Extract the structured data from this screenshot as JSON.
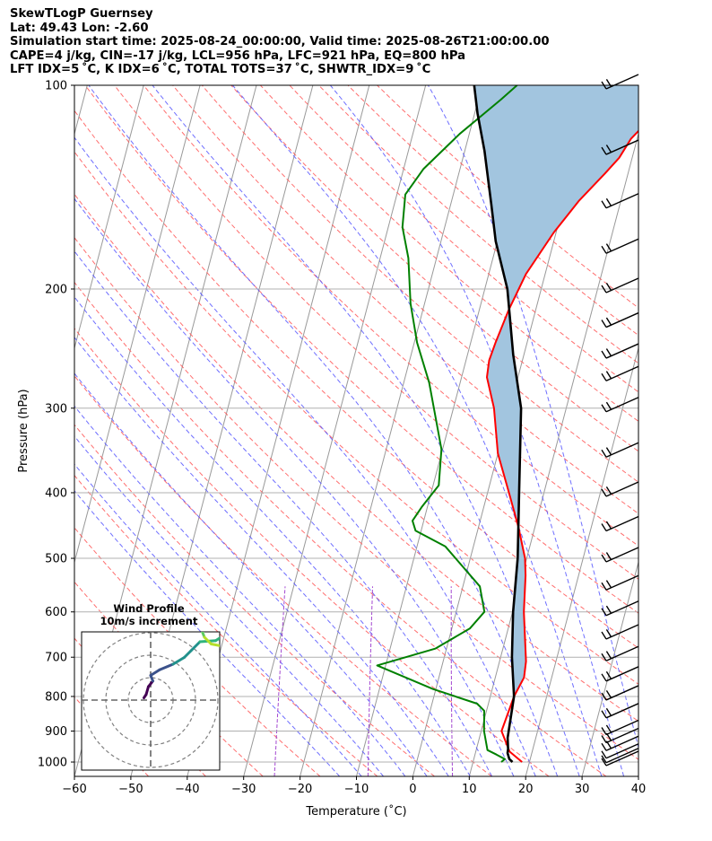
{
  "header": {
    "line1": "SkewTLogP Guernsey",
    "line2": "Lat: 49.43   Lon: -2.60",
    "line3": "Simulation start time: 2025-08-24_00:00:00, Valid time: 2025-08-26T21:00:00.00",
    "line4": "CAPE=4 j/kg, CIN=-17 j/kg, LCL=956 hPa, LFC=921 hPa, EQ=800 hPa",
    "line5": "LFT IDX=5 ˚C, K IDX=6 ˚C, TOTAL TOTS=37 ˚C, SHWTR_IDX=9 ˚C"
  },
  "colors": {
    "temperature": "#ff0000",
    "dewpoint": "#008000",
    "parcel": "#000000",
    "cape_fill": "#a2c5df",
    "dry_adiabat": "#ff5555",
    "moist_adiabat": "#5555ff",
    "mixing_ratio": "#9933cc",
    "isotherm": "#999999"
  },
  "chart_data": {
    "type": "skewt-logp",
    "xlabel": "Temperature (˚C)",
    "ylabel": "Pressure (hPa)",
    "xlim": [
      -60,
      40
    ],
    "ylim": [
      1050,
      100
    ],
    "x_ticks": [
      -60,
      -50,
      -40,
      -30,
      -20,
      -10,
      0,
      10,
      20,
      30,
      40
    ],
    "x_tick_labels": [
      "−60",
      "−50",
      "−40",
      "−30",
      "−20",
      "−10",
      "0",
      "10",
      "20",
      "30",
      "40"
    ],
    "p_ticks": [
      1000,
      900,
      800,
      700,
      600,
      500,
      400,
      300,
      200,
      100
    ],
    "p_tick_labels": [
      "1000",
      "900",
      "800",
      "700",
      "600",
      "500",
      "400",
      "300",
      "200",
      "100"
    ],
    "skew_deg_per_decade": 31.6,
    "series": [
      {
        "name": "Temperature",
        "points": [
          [
            18.7,
            1000
          ],
          [
            16.0,
            965
          ],
          [
            13.6,
            900
          ],
          [
            14.2,
            800
          ],
          [
            15.1,
            750
          ],
          [
            14.7,
            710
          ],
          [
            12.0,
            600
          ],
          [
            10.6,
            530
          ],
          [
            9.7,
            500
          ],
          [
            7.1,
            450
          ],
          [
            3.8,
            400
          ],
          [
            0.0,
            350
          ],
          [
            -2.8,
            300
          ],
          [
            -5.5,
            270
          ],
          [
            -5.9,
            255
          ],
          [
            -5.6,
            240
          ],
          [
            -4.8,
            215
          ],
          [
            -3.4,
            190
          ],
          [
            -0.4,
            165
          ],
          [
            2.6,
            148
          ],
          [
            5.9,
            135
          ],
          [
            7.7,
            128
          ],
          [
            8.9,
            120
          ],
          [
            11.4,
            112
          ],
          [
            13.3,
            105
          ],
          [
            14.7,
            100
          ]
        ]
      },
      {
        "name": "Dewpoint",
        "points": [
          [
            15.0,
            1000
          ],
          [
            15.5,
            990
          ],
          [
            13.8,
            975
          ],
          [
            12.0,
            960
          ],
          [
            10.5,
            900
          ],
          [
            9.6,
            840
          ],
          [
            8.0,
            820
          ],
          [
            -0.5,
            780
          ],
          [
            -11.5,
            720
          ],
          [
            -2.0,
            680
          ],
          [
            3.2,
            635
          ],
          [
            5.0,
            600
          ],
          [
            3.0,
            550
          ],
          [
            -5.0,
            480
          ],
          [
            -11.0,
            455
          ],
          [
            -12.0,
            440
          ],
          [
            -11.0,
            420
          ],
          [
            -9.0,
            390
          ],
          [
            -10.2,
            345
          ],
          [
            -15.5,
            275
          ],
          [
            -19.5,
            240
          ],
          [
            -22.5,
            210
          ],
          [
            -25.0,
            180
          ],
          [
            -27.5,
            162
          ],
          [
            -28.5,
            145
          ],
          [
            -26.5,
            133
          ],
          [
            -21.7,
            118
          ],
          [
            -16.0,
            105
          ],
          [
            -13.8,
            100
          ]
        ]
      },
      {
        "name": "Parcel",
        "points": [
          [
            17.0,
            1000
          ],
          [
            16.3,
            990
          ],
          [
            15.7,
            970
          ],
          [
            15.6,
            956
          ],
          [
            15.0,
            921
          ],
          [
            14.2,
            800
          ],
          [
            12.0,
            700
          ],
          [
            10.1,
            600
          ],
          [
            8.4,
            500
          ],
          [
            5.6,
            400
          ],
          [
            2.0,
            300
          ],
          [
            -1.9,
            250
          ],
          [
            -6.0,
            200
          ],
          [
            -10.3,
            170
          ],
          [
            -12.8,
            150
          ],
          [
            -16.5,
            125
          ],
          [
            -19.5,
            110
          ],
          [
            -21.4,
            100
          ]
        ]
      }
    ],
    "wind_barbs": {
      "levels": [
        1000,
        990,
        975,
        950,
        925,
        900,
        850,
        800,
        750,
        700,
        650,
        600,
        550,
        500,
        450,
        400,
        350,
        300,
        270,
        250,
        225,
        200,
        175,
        150,
        125,
        100
      ],
      "flags": [
        1,
        1,
        1,
        2,
        2,
        2,
        2,
        2,
        2,
        2,
        2,
        2,
        2,
        2,
        2,
        2,
        2,
        2,
        2,
        2,
        2,
        2,
        2,
        2,
        2,
        2
      ]
    },
    "inset": {
      "title": "Wind Profile",
      "subtitle": "10m/s increment",
      "rings": [
        1,
        2,
        3
      ],
      "hodograph": [
        [
          -0.3,
          0.1
        ],
        [
          -0.2,
          0.25
        ],
        [
          -0.1,
          0.6
        ],
        [
          0.1,
          0.85
        ],
        [
          0.0,
          1.1
        ],
        [
          0.4,
          1.35
        ],
        [
          1.0,
          1.6
        ],
        [
          1.5,
          1.9
        ],
        [
          1.8,
          2.2
        ],
        [
          2.2,
          2.6
        ],
        [
          2.9,
          2.65
        ],
        [
          3.3,
          2.9
        ],
        [
          3.1,
          3.1
        ],
        [
          2.6,
          3.2
        ],
        [
          2.3,
          3.05
        ],
        [
          2.4,
          2.8
        ],
        [
          2.7,
          2.5
        ],
        [
          3.2,
          2.4
        ],
        [
          3.6,
          2.8
        ],
        [
          3.8,
          3.1
        ],
        [
          3.4,
          3.25
        ],
        [
          2.9,
          3.25
        ]
      ]
    }
  }
}
